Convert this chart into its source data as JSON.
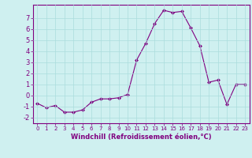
{
  "x": [
    0,
    1,
    2,
    3,
    4,
    5,
    6,
    7,
    8,
    9,
    10,
    11,
    12,
    13,
    14,
    15,
    16,
    17,
    18,
    19,
    20,
    21,
    22,
    23
  ],
  "y": [
    -0.7,
    -1.1,
    -0.9,
    -1.5,
    -1.5,
    -1.3,
    -0.6,
    -0.3,
    -0.3,
    -0.2,
    0.1,
    3.2,
    4.7,
    6.5,
    7.7,
    7.5,
    7.6,
    6.1,
    4.5,
    1.2,
    1.4,
    -0.8,
    1.0,
    1.0
  ],
  "line_color": "#800080",
  "marker": "D",
  "marker_size": 2,
  "bg_color": "#cff0f0",
  "grid_color": "#aadddd",
  "xlabel": "Windchill (Refroidissement éolien,°C)",
  "xlim": [
    -0.5,
    23.5
  ],
  "ylim": [
    -2.5,
    8.2
  ],
  "yticks": [
    -2,
    -1,
    0,
    1,
    2,
    3,
    4,
    5,
    6,
    7
  ],
  "xticks": [
    0,
    1,
    2,
    3,
    4,
    5,
    6,
    7,
    8,
    9,
    10,
    11,
    12,
    13,
    14,
    15,
    16,
    17,
    18,
    19,
    20,
    21,
    22,
    23
  ],
  "xlabel_fontsize": 6,
  "xtick_fontsize": 5,
  "ytick_fontsize": 6
}
